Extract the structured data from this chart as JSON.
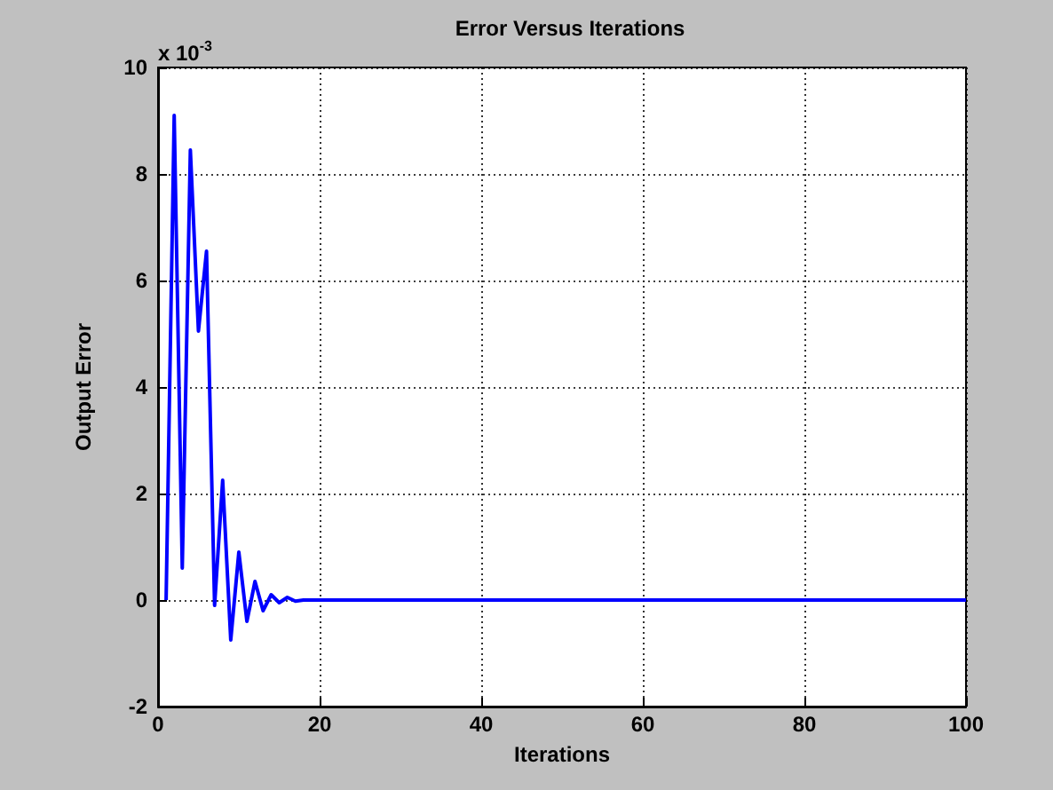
{
  "chart_data": {
    "type": "line",
    "title": "Error Versus Iterations",
    "xlabel": "Iterations",
    "ylabel": "Output Error",
    "annotations": [
      "x 10$^{-3}$"
    ],
    "x": [
      1,
      2,
      3,
      4,
      5,
      6,
      7,
      8,
      9,
      10,
      11,
      12,
      13,
      14,
      15,
      16,
      17,
      18,
      100
    ],
    "series": [
      {
        "color": "#0000ff",
        "values": [
          0,
          9.1,
          0.6,
          8.45,
          5.05,
          6.55,
          -0.1,
          2.25,
          -0.75,
          0.9,
          -0.4,
          0.35,
          -0.2,
          0.1,
          -0.05,
          0.05,
          -0.02,
          0,
          0
        ]
      }
    ],
    "xlim": [
      0,
      100
    ],
    "xticks": [
      0,
      20,
      40,
      60,
      80,
      100
    ],
    "ylim": [
      -2,
      10
    ],
    "yticks": [
      -2,
      0,
      2,
      4,
      6,
      8,
      10
    ],
    "grid": true,
    "marker": "none",
    "line_style": "solid"
  }
}
